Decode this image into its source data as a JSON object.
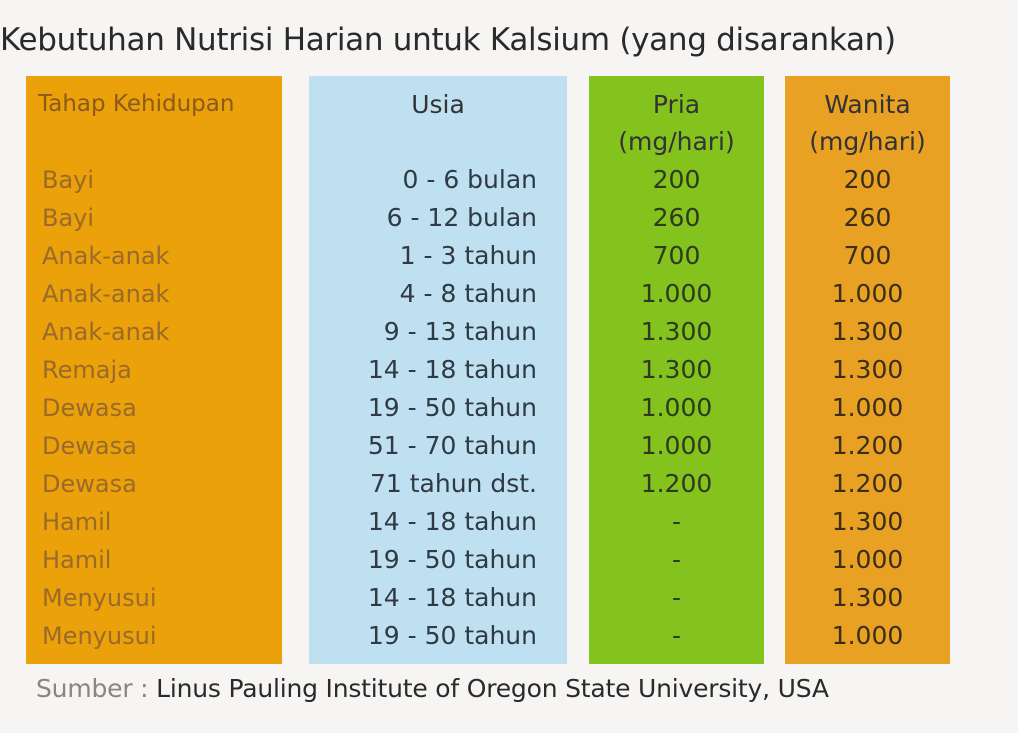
{
  "title": "Kebutuhan Nutrisi Harian untuk Kalsium (yang disarankan)",
  "headers": {
    "stage": "Tahap Kehidupan",
    "age": "Usia",
    "male_line1": "Pria",
    "male_line2": "(mg/hari)",
    "female_line1": "Wanita",
    "female_line2": "(mg/hari)"
  },
  "stages": [
    "Bayi",
    "Bayi",
    "Anak-anak",
    "Anak-anak",
    "Anak-anak",
    "Remaja",
    "Dewasa",
    "Dewasa",
    "Dewasa",
    "Hamil",
    "Hamil",
    "Menyusui",
    "Menyusui"
  ],
  "ages": [
    "0 - 6 bulan",
    "6 - 12 bulan",
    "1 - 3 tahun",
    "4 - 8 tahun",
    "9 - 13 tahun",
    "14 - 18 tahun",
    "19 - 50 tahun",
    "51 - 70 tahun",
    "71 tahun dst.",
    "14 - 18 tahun",
    "19 - 50 tahun",
    "14 - 18 tahun",
    "19 - 50 tahun"
  ],
  "male": [
    "200",
    "260",
    "700",
    "1.000",
    "1.300",
    "1.300",
    "1.000",
    "1.000",
    "1.200",
    "-",
    "-",
    "-",
    "-"
  ],
  "female": [
    "200",
    "260",
    "700",
    "1.000",
    "1.300",
    "1.300",
    "1.000",
    "1.200",
    "1.200",
    "1.300",
    "1.000",
    "1.300",
    "1.000"
  ],
  "source_label": "Sumber :",
  "source_text": "Linus Pauling Institute of Oregon State University, USA",
  "colors": {
    "stage_col": "#eba10a",
    "age_col": "#bfe0f0",
    "male_col": "#84c21d",
    "female_col": "#e9a124"
  }
}
